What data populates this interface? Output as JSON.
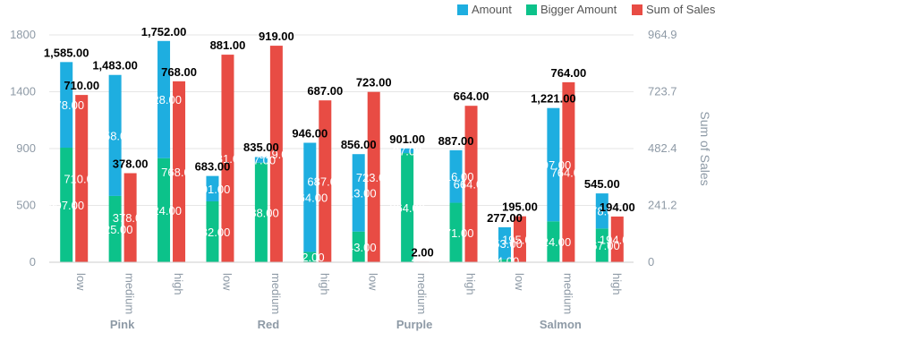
{
  "chart_data": {
    "type": "bar",
    "groups": [
      {
        "name": "Pink",
        "categories": [
          "low",
          "medium",
          "high"
        ]
      },
      {
        "name": "Red",
        "categories": [
          "low",
          "medium",
          "high"
        ]
      },
      {
        "name": "Purple",
        "categories": [
          "low",
          "medium",
          "high"
        ]
      },
      {
        "name": "Salmon",
        "categories": [
          "low",
          "medium",
          "high"
        ]
      }
    ],
    "series": [
      {
        "name": "Amount",
        "axis": "left",
        "stack": "a",
        "color": "#1eaee0",
        "values": [
          678,
          958,
          928,
          201,
          47,
          864,
          613,
          37,
          416,
          253,
          897,
          278
        ]
      },
      {
        "name": "Bigger Amount",
        "axis": "left",
        "stack": "a",
        "color": "#0cc28a",
        "values": [
          907,
          525,
          824,
          482,
          788,
          82,
          243,
          864,
          471,
          24,
          324,
          267
        ]
      },
      {
        "name": "Sum of Sales",
        "axis": "right",
        "stack": "b",
        "color": "#e84c44",
        "values": [
          710,
          378,
          768,
          881,
          919,
          687,
          723,
          2,
          664,
          195,
          764,
          194
        ]
      }
    ],
    "stack_totals": [
      1585,
      1483,
      1752,
      683,
      835,
      946,
      856,
      901,
      887,
      277,
      1221,
      545
    ],
    "value_labels": {
      "Amount": [
        "678.00",
        "958.00",
        "928.00",
        "201.00",
        "47.00",
        "864.00",
        "613.00",
        "37.00",
        "416.00",
        "253.00",
        "897.00",
        "278.00"
      ],
      "Bigger Amount": [
        "907.00",
        "525.00",
        "824.00",
        "482.00",
        "788.00",
        "82.00",
        "243.00",
        "864.00",
        "471.00",
        "24.00",
        "324.00",
        "267.00"
      ],
      "Sum of Sales": [
        "710.00",
        "378.00",
        "768.00",
        "881.00",
        "919.00",
        "687.00",
        "723.00",
        "2.00",
        "664.00",
        "195.00",
        "764.00",
        "194.00"
      ],
      "totals": [
        "1,585.00",
        "1,483.00",
        "1,752.00",
        "683.00",
        "835.00",
        "946.00",
        "856.00",
        "901.00",
        "887.00",
        "277.00",
        "1,221.00",
        "545.00"
      ]
    },
    "y_left": {
      "ylim": [
        0,
        1800
      ],
      "ticks": [
        "0",
        "500",
        "900",
        "1400",
        "1800"
      ]
    },
    "y_right": {
      "label": "Sum of Sales",
      "ylim": [
        0,
        964.9
      ],
      "ticks": [
        "0",
        "241.2",
        "482.4",
        "723.7",
        "964.9"
      ]
    },
    "legend": {
      "position": "top-right"
    },
    "grid": true
  }
}
